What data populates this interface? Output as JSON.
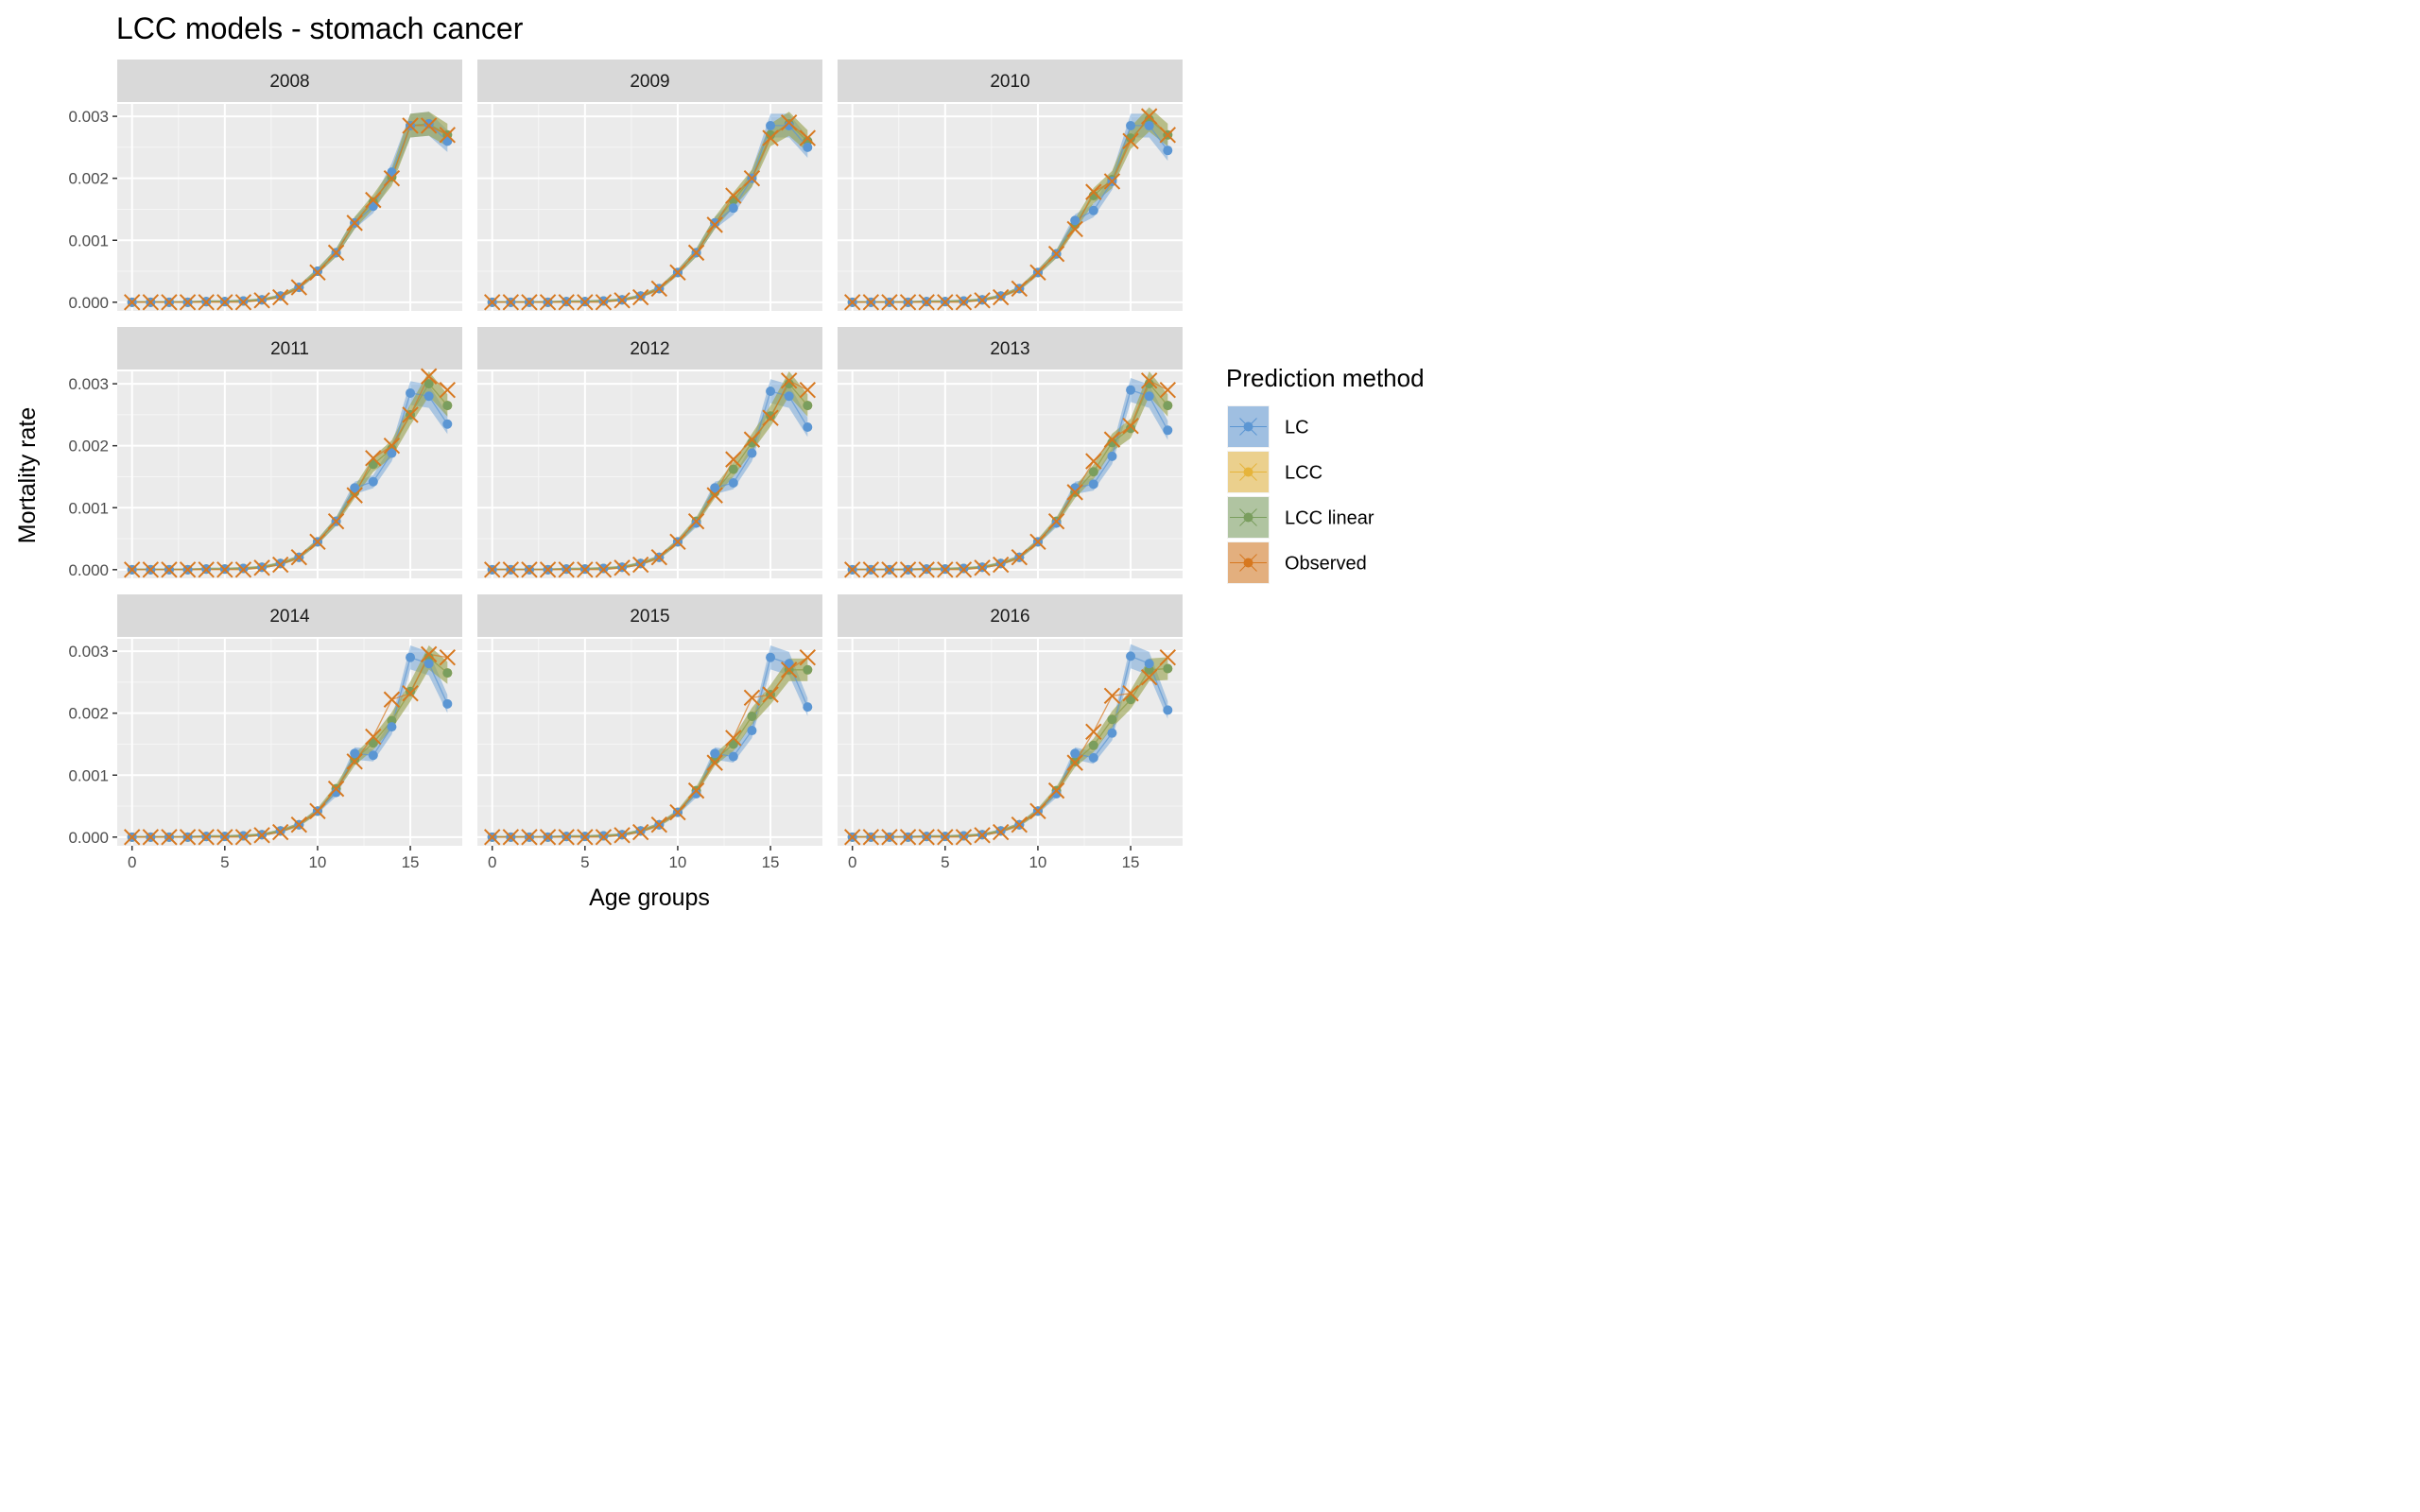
{
  "chart_data": {
    "type": "line",
    "title": "LCC models - stomach cancer",
    "xlabel": "Age groups",
    "ylabel": "Mortality rate",
    "xlim": [
      -0.8,
      17.8
    ],
    "ylim": [
      -0.00014,
      0.0032
    ],
    "xticks": [
      0,
      5,
      10,
      15
    ],
    "xtick_labels": [
      "0",
      "5",
      "10",
      "15"
    ],
    "yticks": [
      0,
      0.001,
      0.002,
      0.003
    ],
    "ytick_labels": [
      "0.000",
      "0.001",
      "0.002",
      "0.003"
    ],
    "grid": true,
    "legend": {
      "title": "Prediction method",
      "position": "right",
      "entries": [
        {
          "name": "LC",
          "color": "#5b96d3"
        },
        {
          "name": "LCC",
          "color": "#e6b43b"
        },
        {
          "name": "LCC linear",
          "color": "#7a9e5e"
        },
        {
          "name": "Observed",
          "color": "#d7781f"
        }
      ]
    },
    "x": [
      0,
      1,
      2,
      3,
      4,
      5,
      6,
      7,
      8,
      9,
      10,
      11,
      12,
      13,
      14,
      15,
      16,
      17
    ],
    "facets": [
      {
        "label": "2008",
        "series": {
          "LC": [
            0,
            0,
            0,
            0,
            1e-05,
            1e-05,
            2e-05,
            4e-05,
            0.0001,
            0.00024,
            0.0005,
            0.0008,
            0.00128,
            0.00155,
            0.0021,
            0.00285,
            0.00288,
            0.0026
          ],
          "LCC": [
            0,
            0,
            0,
            0,
            1e-05,
            1e-05,
            2e-05,
            4e-05,
            0.0001,
            0.00024,
            0.0005,
            0.0008,
            0.00128,
            0.00162,
            0.00202,
            0.00285,
            0.00288,
            0.0027
          ],
          "LCC linear": [
            0,
            0,
            0,
            0,
            1e-05,
            1e-05,
            2e-05,
            4e-05,
            0.0001,
            0.00024,
            0.0005,
            0.0008,
            0.00128,
            0.00162,
            0.00202,
            0.00285,
            0.00288,
            0.0027
          ],
          "Observed": [
            0,
            0,
            0,
            0,
            0,
            0,
            0,
            3e-05,
            8e-05,
            0.00024,
            0.00048,
            0.0008,
            0.00128,
            0.00165,
            0.002,
            0.00285,
            0.00285,
            0.0027
          ]
        }
      },
      {
        "label": "2009",
        "series": {
          "LC": [
            0,
            0,
            0,
            0,
            1e-05,
            1e-05,
            2e-05,
            4e-05,
            0.0001,
            0.00022,
            0.00048,
            0.0008,
            0.00128,
            0.00152,
            0.002,
            0.00285,
            0.00285,
            0.0025
          ],
          "LCC": [
            0,
            0,
            0,
            0,
            1e-05,
            1e-05,
            2e-05,
            4e-05,
            0.0001,
            0.00022,
            0.00048,
            0.0008,
            0.00128,
            0.00165,
            0.002,
            0.0027,
            0.00288,
            0.0026
          ],
          "LCC linear": [
            0,
            0,
            0,
            0,
            1e-05,
            1e-05,
            2e-05,
            4e-05,
            0.0001,
            0.00022,
            0.00048,
            0.0008,
            0.00128,
            0.00165,
            0.002,
            0.0027,
            0.00288,
            0.0026
          ],
          "Observed": [
            0,
            0,
            0,
            0,
            0,
            0,
            0,
            3e-05,
            8e-05,
            0.00022,
            0.00048,
            0.0008,
            0.00125,
            0.00172,
            0.002,
            0.00265,
            0.0029,
            0.00265
          ]
        }
      },
      {
        "label": "2010",
        "series": {
          "LC": [
            0,
            0,
            0,
            0,
            1e-05,
            1e-05,
            2e-05,
            4e-05,
            0.0001,
            0.00022,
            0.00048,
            0.00078,
            0.00132,
            0.00148,
            0.00195,
            0.00285,
            0.00285,
            0.00245
          ],
          "LCC": [
            0,
            0,
            0,
            0,
            1e-05,
            1e-05,
            2e-05,
            4e-05,
            0.0001,
            0.00022,
            0.00048,
            0.00078,
            0.00125,
            0.00172,
            0.00198,
            0.00265,
            0.00295,
            0.0027
          ],
          "LCC linear": [
            0,
            0,
            0,
            0,
            1e-05,
            1e-05,
            2e-05,
            4e-05,
            0.0001,
            0.00022,
            0.00048,
            0.00078,
            0.00125,
            0.00172,
            0.00198,
            0.00265,
            0.00295,
            0.0027
          ],
          "Observed": [
            0,
            0,
            0,
            0,
            0,
            0,
            0,
            3e-05,
            8e-05,
            0.00022,
            0.00048,
            0.00078,
            0.00118,
            0.00178,
            0.00195,
            0.0026,
            0.003,
            0.0027
          ]
        }
      },
      {
        "label": "2011",
        "series": {
          "LC": [
            0,
            0,
            0,
            0,
            1e-05,
            1e-05,
            2e-05,
            4e-05,
            0.0001,
            0.0002,
            0.00045,
            0.00078,
            0.00132,
            0.00142,
            0.00188,
            0.00285,
            0.0028,
            0.00235
          ],
          "LCC": [
            0,
            0,
            0,
            0,
            1e-05,
            1e-05,
            2e-05,
            4e-05,
            0.0001,
            0.0002,
            0.00045,
            0.00078,
            0.00125,
            0.0017,
            0.00195,
            0.0025,
            0.003,
            0.00265
          ],
          "LCC linear": [
            0,
            0,
            0,
            0,
            1e-05,
            1e-05,
            2e-05,
            4e-05,
            0.0001,
            0.0002,
            0.00045,
            0.00078,
            0.00125,
            0.0017,
            0.00195,
            0.0025,
            0.003,
            0.00265
          ],
          "Observed": [
            0,
            0,
            0,
            0,
            0,
            0,
            0,
            3e-05,
            8e-05,
            0.0002,
            0.00045,
            0.00078,
            0.0012,
            0.0018,
            0.002,
            0.0025,
            0.00312,
            0.0029
          ]
        }
      },
      {
        "label": "2012",
        "series": {
          "LC": [
            0,
            0,
            0,
            0,
            1e-05,
            1e-05,
            2e-05,
            4e-05,
            0.0001,
            0.0002,
            0.00045,
            0.00075,
            0.00132,
            0.0014,
            0.00188,
            0.00288,
            0.0028,
            0.0023
          ],
          "LCC": [
            0,
            0,
            0,
            0,
            1e-05,
            1e-05,
            2e-05,
            4e-05,
            0.0001,
            0.0002,
            0.00045,
            0.00078,
            0.00125,
            0.00162,
            0.00205,
            0.00248,
            0.003,
            0.00265
          ],
          "LCC linear": [
            0,
            0,
            0,
            0,
            1e-05,
            1e-05,
            2e-05,
            4e-05,
            0.0001,
            0.0002,
            0.00045,
            0.00078,
            0.00125,
            0.00162,
            0.00205,
            0.00248,
            0.003,
            0.00265
          ],
          "Observed": [
            0,
            0,
            0,
            0,
            0,
            0,
            0,
            3e-05,
            8e-05,
            0.0002,
            0.00045,
            0.00078,
            0.0012,
            0.00178,
            0.0021,
            0.00245,
            0.00305,
            0.0029
          ]
        }
      },
      {
        "label": "2013",
        "series": {
          "LC": [
            0,
            0,
            0,
            0,
            1e-05,
            1e-05,
            2e-05,
            4e-05,
            0.0001,
            0.0002,
            0.00045,
            0.00075,
            0.00132,
            0.00138,
            0.00183,
            0.0029,
            0.0028,
            0.00225
          ],
          "LCC": [
            0,
            0,
            0,
            0,
            1e-05,
            1e-05,
            2e-05,
            4e-05,
            0.0001,
            0.0002,
            0.00045,
            0.00078,
            0.00125,
            0.00158,
            0.00205,
            0.00228,
            0.003,
            0.00265
          ],
          "LCC linear": [
            0,
            0,
            0,
            0,
            1e-05,
            1e-05,
            2e-05,
            4e-05,
            0.0001,
            0.0002,
            0.00045,
            0.00078,
            0.00125,
            0.00158,
            0.00205,
            0.00228,
            0.003,
            0.00265
          ],
          "Observed": [
            0,
            0,
            0,
            0,
            0,
            0,
            0,
            3e-05,
            8e-05,
            0.0002,
            0.00045,
            0.00078,
            0.00125,
            0.00175,
            0.0021,
            0.00232,
            0.00305,
            0.0029
          ]
        }
      },
      {
        "label": "2014",
        "series": {
          "LC": [
            0,
            0,
            0,
            0,
            1e-05,
            1e-05,
            2e-05,
            4e-05,
            0.0001,
            0.0002,
            0.00042,
            0.00072,
            0.00135,
            0.00132,
            0.00178,
            0.0029,
            0.0028,
            0.00215
          ],
          "LCC": [
            0,
            0,
            0,
            0,
            1e-05,
            1e-05,
            2e-05,
            4e-05,
            0.0001,
            0.0002,
            0.00042,
            0.00078,
            0.00125,
            0.00152,
            0.00188,
            0.00235,
            0.0029,
            0.00265
          ],
          "LCC linear": [
            0,
            0,
            0,
            0,
            1e-05,
            1e-05,
            2e-05,
            4e-05,
            0.0001,
            0.0002,
            0.00042,
            0.00078,
            0.00125,
            0.00152,
            0.00188,
            0.00235,
            0.0029,
            0.00265
          ],
          "Observed": [
            0,
            0,
            0,
            0,
            0,
            0,
            0,
            3e-05,
            8e-05,
            0.0002,
            0.00042,
            0.00078,
            0.00122,
            0.00162,
            0.00222,
            0.00232,
            0.00295,
            0.0029
          ]
        }
      },
      {
        "label": "2015",
        "series": {
          "LC": [
            0,
            0,
            0,
            0,
            1e-05,
            1e-05,
            2e-05,
            4e-05,
            0.0001,
            0.0002,
            0.0004,
            0.0007,
            0.00135,
            0.0013,
            0.00172,
            0.0029,
            0.0028,
            0.0021
          ],
          "LCC": [
            0,
            0,
            0,
            0,
            1e-05,
            1e-05,
            2e-05,
            4e-05,
            0.0001,
            0.0002,
            0.0004,
            0.00075,
            0.00125,
            0.0015,
            0.00195,
            0.0023,
            0.0027,
            0.0027
          ],
          "LCC linear": [
            0,
            0,
            0,
            0,
            1e-05,
            1e-05,
            2e-05,
            4e-05,
            0.0001,
            0.0002,
            0.0004,
            0.00075,
            0.00125,
            0.0015,
            0.00195,
            0.0023,
            0.0027,
            0.0027
          ],
          "Observed": [
            0,
            0,
            0,
            0,
            0,
            0,
            0,
            3e-05,
            8e-05,
            0.0002,
            0.0004,
            0.00075,
            0.0012,
            0.0016,
            0.00225,
            0.0023,
            0.0027,
            0.0029
          ]
        }
      },
      {
        "label": "2016",
        "series": {
          "LC": [
            0,
            0,
            0,
            0,
            1e-05,
            1e-05,
            2e-05,
            4e-05,
            0.0001,
            0.0002,
            0.00042,
            0.0007,
            0.00135,
            0.00128,
            0.00168,
            0.00292,
            0.0028,
            0.00205
          ],
          "LCC": [
            0,
            0,
            0,
            0,
            1e-05,
            1e-05,
            2e-05,
            4e-05,
            0.0001,
            0.0002,
            0.00042,
            0.00075,
            0.00122,
            0.00148,
            0.0019,
            0.00222,
            0.0027,
            0.00272
          ],
          "LCC linear": [
            0,
            0,
            0,
            0,
            1e-05,
            1e-05,
            2e-05,
            4e-05,
            0.0001,
            0.0002,
            0.00042,
            0.00075,
            0.00122,
            0.00148,
            0.0019,
            0.00222,
            0.0027,
            0.00272
          ],
          "Observed": [
            0,
            0,
            0,
            0,
            0,
            0,
            0,
            3e-05,
            8e-05,
            0.0002,
            0.00042,
            0.00075,
            0.0012,
            0.0017,
            0.00228,
            0.00232,
            0.00258,
            0.0029
          ]
        }
      }
    ]
  }
}
